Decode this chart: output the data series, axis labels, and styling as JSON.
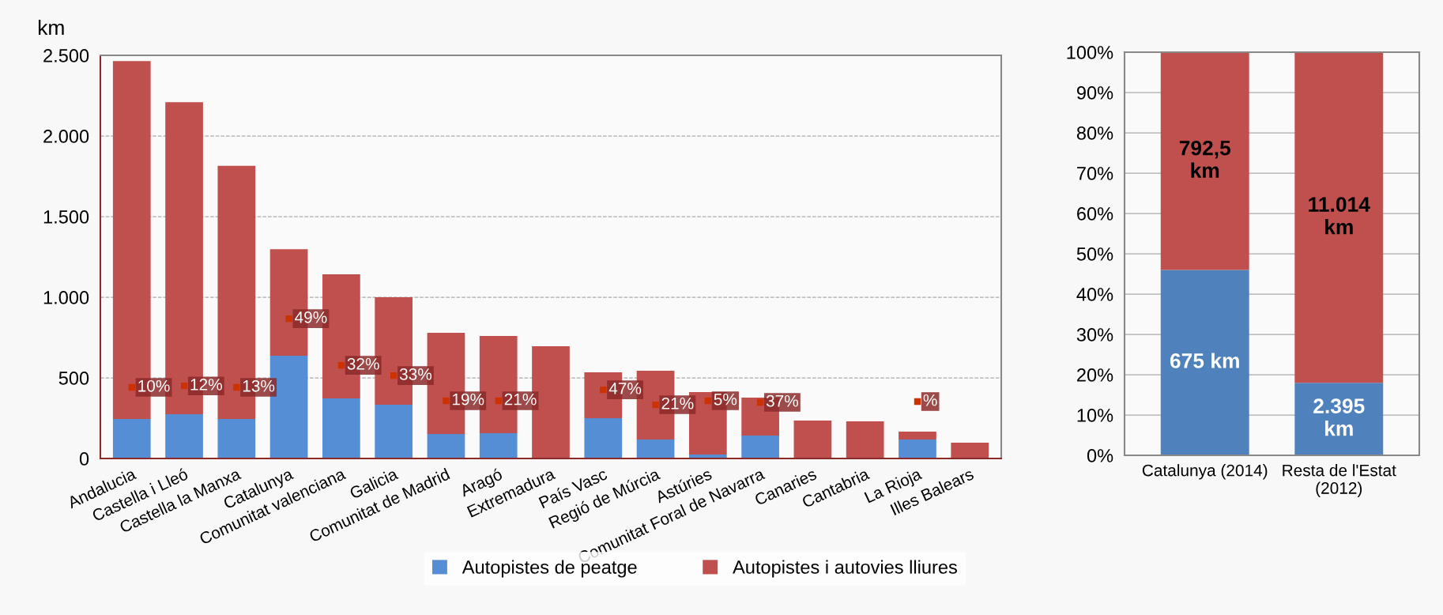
{
  "chart_data": [
    {
      "type": "bar",
      "stacked": true,
      "ylabel": "km",
      "categories": [
        "Andalucia",
        "Castella i Lleó",
        "Castella la Manxa",
        "Catalunya",
        "Comunitat valenciana",
        "Galicia",
        "Comunitat de Madrid",
        "Aragó",
        "Extremadura",
        "País Vasc",
        "Regió de Múrcia",
        "Astúries",
        "Comunitat Foral de Navarra",
        "Canaries",
        "Cantabria",
        "La Rioja",
        "Illes Balears"
      ],
      "series": [
        {
          "name": "Autopistes de peatge",
          "color": "#558ed5",
          "values": [
            245,
            275,
            245,
            637,
            372,
            333,
            152,
            157,
            0,
            250,
            118,
            25,
            142,
            0,
            0,
            118,
            0
          ]
        },
        {
          "name": "Autopistes i autovies lliures",
          "color": "#c0504d",
          "values": [
            2220,
            1935,
            1570,
            661,
            770,
            667,
            627,
            603,
            696,
            284,
            426,
            387,
            235,
            235,
            230,
            49,
            98
          ]
        }
      ],
      "annotations": [
        {
          "text": "10%",
          "x": "Andalucia",
          "y": 441
        },
        {
          "text": "12%",
          "x": "Castella i Lleó",
          "y": 450
        },
        {
          "text": "13%",
          "x": "Castella la Manxa",
          "y": 441
        },
        {
          "text": "49%",
          "x": "Catalunya",
          "y": 867
        },
        {
          "text": "32%",
          "x": "Comunitat valenciana",
          "y": 578
        },
        {
          "text": "33%",
          "x": "Galicia",
          "y": 514
        },
        {
          "text": "19%",
          "x": "Comunitat de Madrid",
          "y": 358
        },
        {
          "text": "21%",
          "x": "Aragó",
          "y": 358
        },
        {
          "text": "47%",
          "x": "País Vasc",
          "y": 426
        },
        {
          "text": "21%",
          "x": "Regió de Múrcia",
          "y": 333
        },
        {
          "text": "5%",
          "x": "Astúries",
          "y": 358
        },
        {
          "text": "37%",
          "x": "Comunitat Foral de Navarra",
          "y": 348
        },
        {
          "text": "%",
          "x": "La Rioja",
          "y": 353
        }
      ],
      "ylim": [
        0,
        2500
      ],
      "yticks": [
        {
          "value": 0,
          "label": "0"
        },
        {
          "value": 500,
          "label": "500"
        },
        {
          "value": 1000,
          "label": "1.000"
        },
        {
          "value": 1500,
          "label": "1.500"
        },
        {
          "value": 2000,
          "label": "2.000"
        },
        {
          "value": 2500,
          "label": "2.500"
        }
      ],
      "grid": "y",
      "legend": "bottom"
    },
    {
      "type": "bar",
      "stacked": true,
      "categories": [
        "Catalunya (2014)",
        "Resta de l'Estat (2012)"
      ],
      "series": [
        {
          "color": "#4f81bd",
          "values": [
            46,
            18
          ]
        },
        {
          "color": "#c0504d",
          "values": [
            54,
            82
          ]
        }
      ],
      "annotations": [
        "675 km",
        "2.395 km",
        "792,5 km",
        "11.014 km"
      ],
      "ylim": [
        0,
        100
      ],
      "yticks": [
        {
          "value": 0,
          "label": "0%"
        },
        {
          "value": 10,
          "label": "10%"
        },
        {
          "value": 20,
          "label": "20%"
        },
        {
          "value": 30,
          "label": "30%"
        },
        {
          "value": 40,
          "label": "40%"
        },
        {
          "value": 50,
          "label": "50%"
        },
        {
          "value": 60,
          "label": "60%"
        },
        {
          "value": 70,
          "label": "70%"
        },
        {
          "value": 80,
          "label": "80%"
        },
        {
          "value": 90,
          "label": "90%"
        },
        {
          "value": 100,
          "label": "100%"
        }
      ],
      "grid": "y"
    }
  ]
}
